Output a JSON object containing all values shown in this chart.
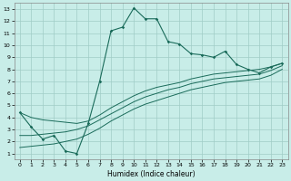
{
  "xlabel": "Humidex (Indice chaleur)",
  "xlim": [
    -0.5,
    23.5
  ],
  "ylim": [
    0.5,
    13.5
  ],
  "xticks": [
    0,
    1,
    2,
    3,
    4,
    5,
    6,
    7,
    8,
    9,
    10,
    11,
    12,
    13,
    14,
    15,
    16,
    17,
    18,
    19,
    20,
    21,
    22,
    23
  ],
  "yticks": [
    1,
    2,
    3,
    4,
    5,
    6,
    7,
    8,
    9,
    10,
    11,
    12,
    13
  ],
  "bg_color": "#c8ede8",
  "grid_color": "#a0ccc6",
  "line_color": "#1a6b5a",
  "main_y": [
    4.4,
    3.2,
    2.2,
    2.5,
    1.2,
    1.0,
    3.5,
    7.0,
    11.2,
    11.5,
    13.1,
    12.2,
    12.2,
    10.3,
    10.1,
    9.3,
    9.2,
    9.0,
    9.5,
    8.4,
    8.0,
    7.7,
    8.2,
    8.5
  ],
  "reg1_start_x": 0,
  "reg1_start_y": 4.4,
  "reg1_end_x": 23,
  "reg1_end_y": 8.5,
  "reg2_start_x": 0,
  "reg2_start_y": 2.5,
  "reg2_end_x": 23,
  "reg2_end_y": 8.3,
  "reg3_start_x": 0,
  "reg3_start_y": 1.5,
  "reg3_end_x": 23,
  "reg3_end_y": 8.0,
  "reg1_y": [
    4.4,
    4.0,
    3.8,
    3.7,
    3.6,
    3.5,
    3.7,
    4.2,
    4.8,
    5.3,
    5.8,
    6.2,
    6.5,
    6.7,
    6.9,
    7.2,
    7.4,
    7.6,
    7.7,
    7.8,
    7.9,
    8.0,
    8.2,
    8.5
  ],
  "reg2_y": [
    2.5,
    2.5,
    2.6,
    2.7,
    2.8,
    3.0,
    3.3,
    3.8,
    4.3,
    4.8,
    5.3,
    5.7,
    6.0,
    6.3,
    6.5,
    6.8,
    7.0,
    7.2,
    7.3,
    7.4,
    7.5,
    7.6,
    7.9,
    8.3
  ],
  "reg3_y": [
    1.5,
    1.6,
    1.7,
    1.8,
    2.0,
    2.2,
    2.6,
    3.1,
    3.7,
    4.2,
    4.7,
    5.1,
    5.4,
    5.7,
    6.0,
    6.3,
    6.5,
    6.7,
    6.9,
    7.0,
    7.1,
    7.2,
    7.5,
    8.0
  ]
}
